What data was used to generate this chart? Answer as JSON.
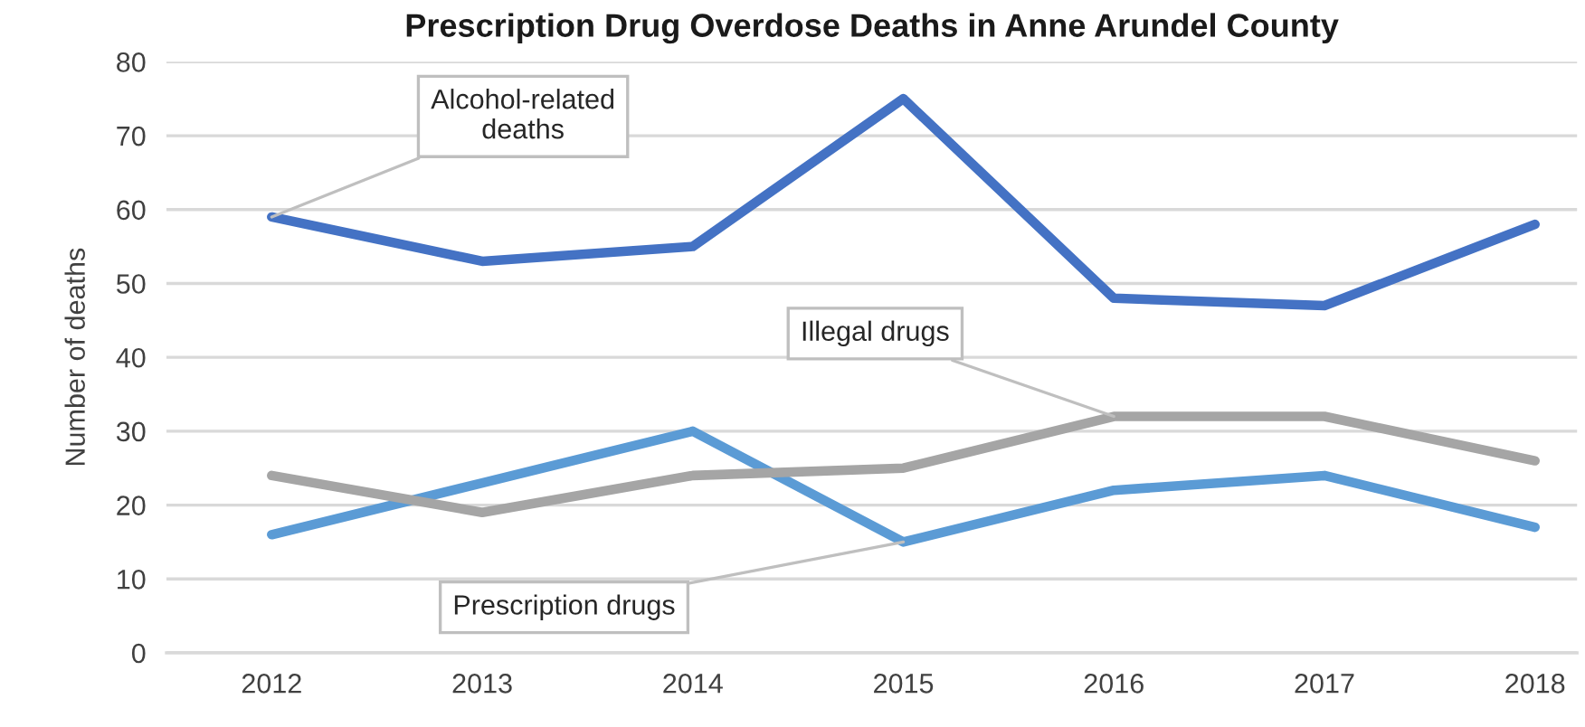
{
  "chart_data": {
    "type": "line",
    "title": "Prescription Drug Overdose Deaths in Anne Arundel County",
    "ylabel": "Number of deaths",
    "categories": [
      "2012",
      "2013",
      "2014",
      "2015",
      "2016",
      "2017",
      "2018"
    ],
    "series": [
      {
        "color": "#4472c4",
        "values": [
          59,
          53,
          55,
          75,
          48,
          47,
          58
        ]
      },
      {
        "color": "#5b9bd5",
        "values": [
          16,
          23,
          30,
          15,
          22,
          24,
          17
        ]
      },
      {
        "color": "#a5a5a5",
        "values": [
          24,
          19,
          24,
          25,
          32,
          32,
          26
        ]
      }
    ],
    "annotations": [
      {
        "text": "Alcohol-related\ndeaths",
        "x": "2012",
        "y": 59
      },
      {
        "text": "Illegal drugs",
        "x": "2016",
        "y": 32
      },
      {
        "text": "Prescription drugs",
        "x": "2015",
        "y": 15
      }
    ],
    "ylim": [
      0,
      80
    ],
    "yticks": [
      0,
      10,
      20,
      30,
      40,
      50,
      60,
      70,
      80
    ],
    "grid": "y"
  }
}
